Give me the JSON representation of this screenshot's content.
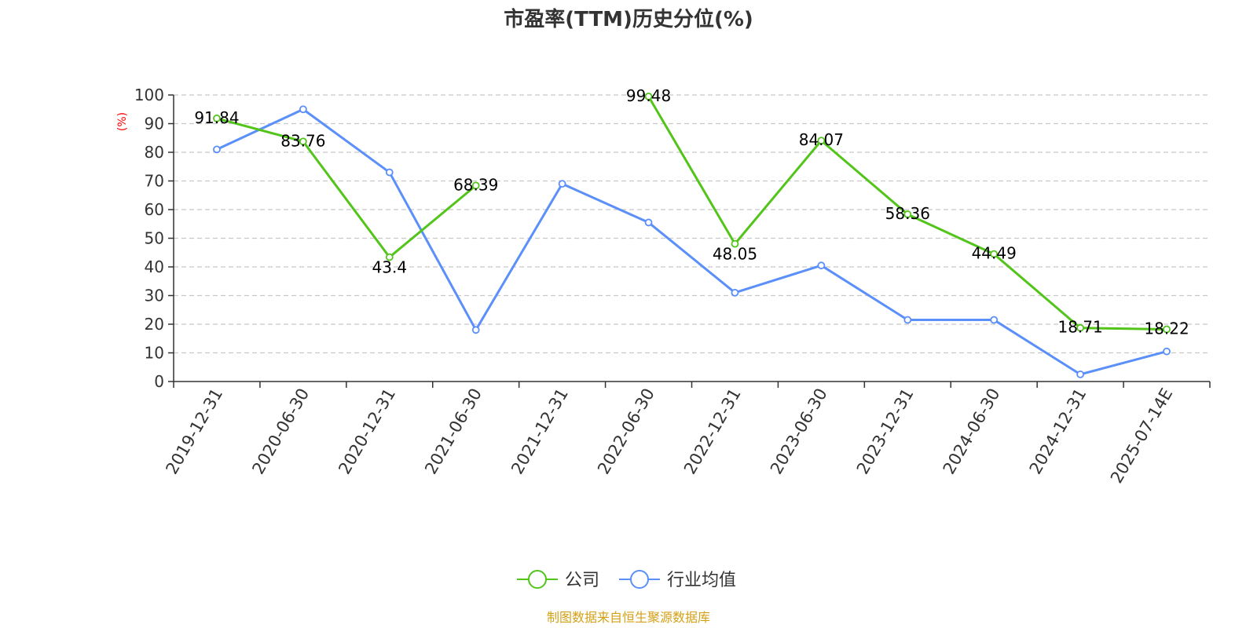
{
  "chart_data": {
    "type": "line",
    "title": "市盈率(TTM)历史分位(%)",
    "ylabel": "(%)",
    "xlabel": "",
    "ylim": [
      0,
      100
    ],
    "yticks": [
      "0",
      "10",
      "20",
      "30",
      "40",
      "50",
      "60",
      "70",
      "80",
      "90",
      "100"
    ],
    "grid": true,
    "legend_position": "bottom-center",
    "categories": [
      "2019-12-31",
      "2020-06-30",
      "2020-12-31",
      "2021-06-30",
      "2021-12-31",
      "2022-06-30",
      "2022-12-31",
      "2023-06-30",
      "2023-12-31",
      "2024-06-30",
      "2024-12-31",
      "2025-07-14E"
    ],
    "series": [
      {
        "name": "公司",
        "color": "#52c41a",
        "values": [
          91.84,
          83.76,
          43.4,
          68.39,
          null,
          99.48,
          48.05,
          84.07,
          58.36,
          44.49,
          18.71,
          18.22
        ],
        "labels": [
          "91.84",
          "83.76",
          "43.4",
          "68.39",
          "",
          "99.48",
          "48.05",
          "84.07",
          "58.36",
          "44.49",
          "18.71",
          "18.22"
        ]
      },
      {
        "name": "行业均值",
        "color": "#5b8ff9",
        "values": [
          81,
          95,
          73,
          18,
          69,
          55.5,
          31,
          40.5,
          21.5,
          21.5,
          2.5,
          10.5
        ]
      }
    ],
    "source": "制图数据来自恒生聚源数据库",
    "source_color": "#d4a017",
    "axis_label_color": "#ff0000"
  }
}
